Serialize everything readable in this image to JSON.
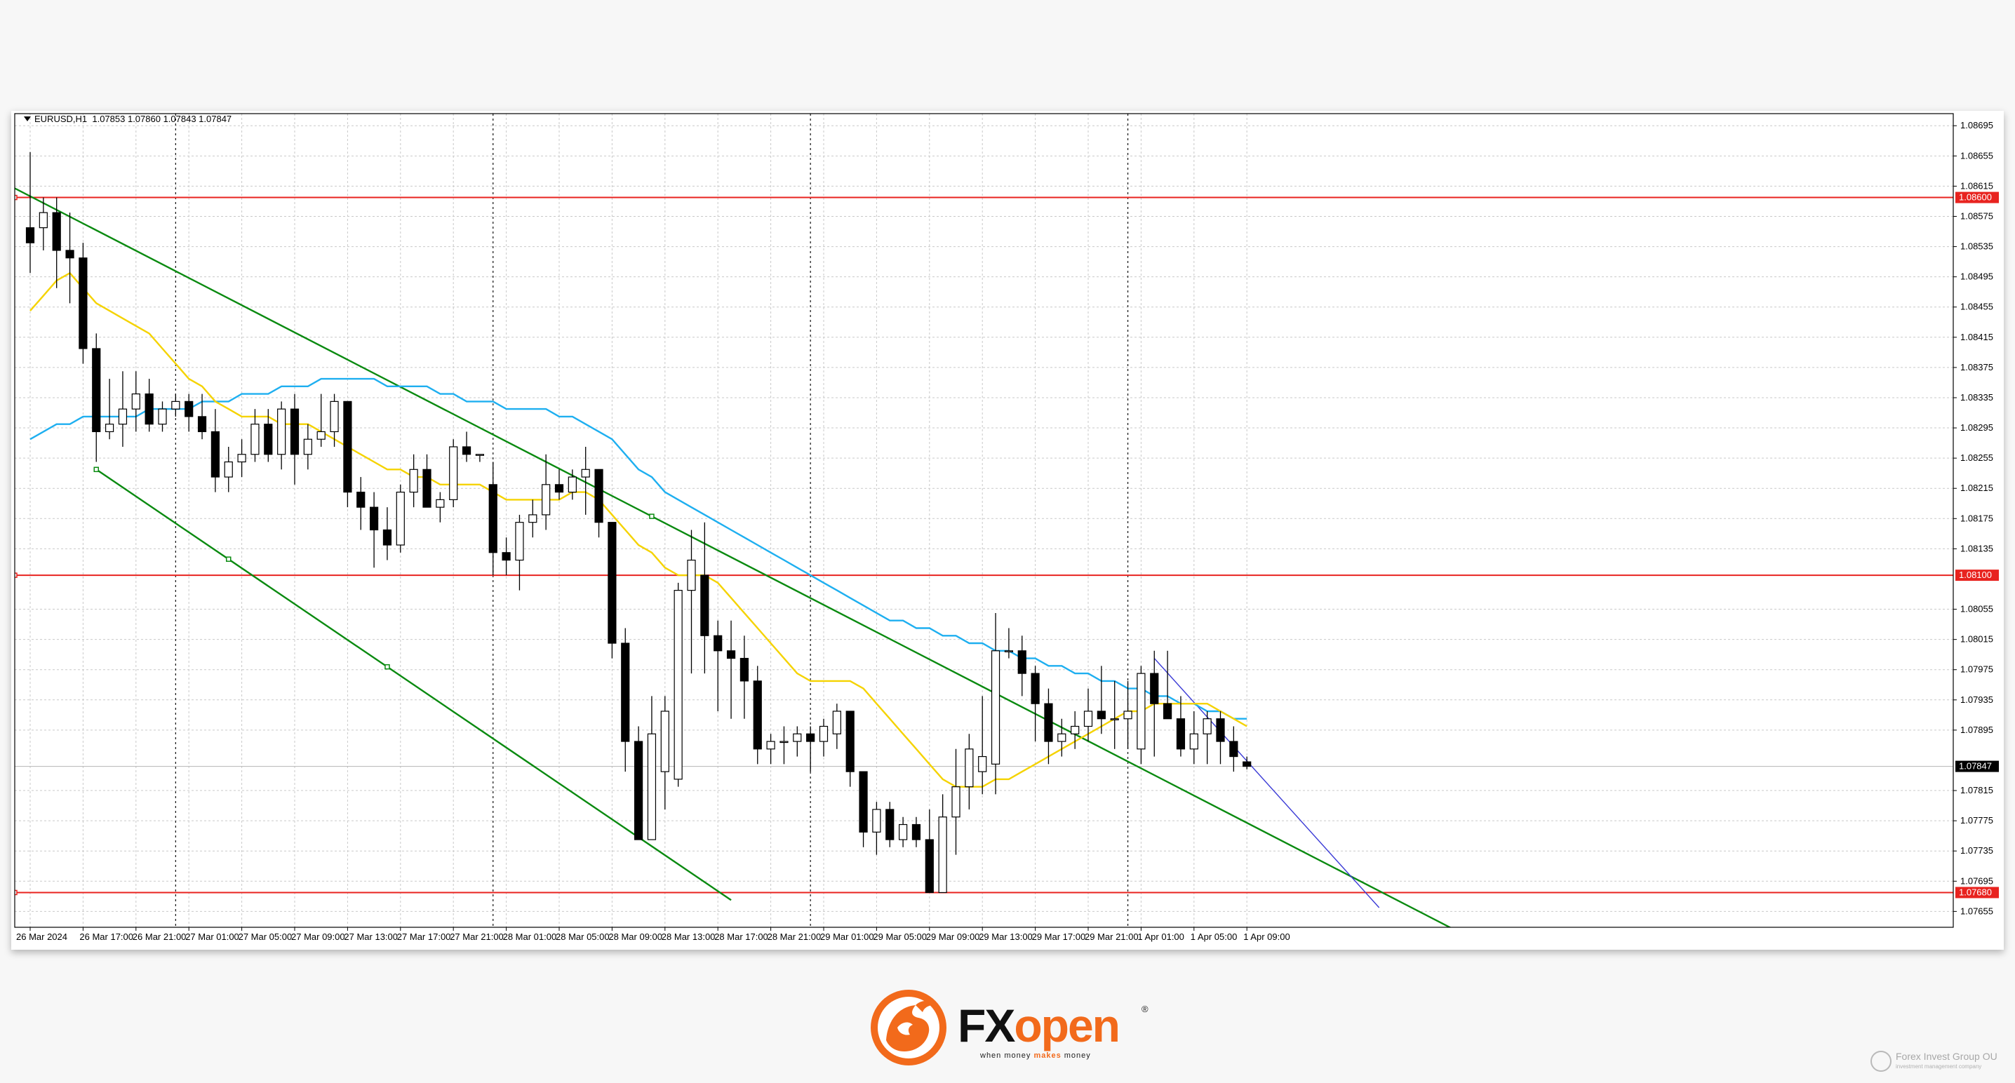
{
  "header": {
    "symbol": "EURUSD,H1",
    "ohlc": "1.07853 1.07860 1.07843 1.07847"
  },
  "chart_data": {
    "type": "candlestick",
    "timeframe": "H1",
    "ylim": [
      1.07634,
      1.08711
    ],
    "y_ticks": [
      "1.08695",
      "1.08655",
      "1.08615",
      "1.08575",
      "1.08535",
      "1.08495",
      "1.08455",
      "1.08415",
      "1.08375",
      "1.08335",
      "1.08295",
      "1.08255",
      "1.08215",
      "1.08175",
      "1.08135",
      "1.08055",
      "1.08015",
      "1.07975",
      "1.07935",
      "1.07895",
      "1.07815",
      "1.07775",
      "1.07735",
      "1.07695",
      "1.07655"
    ],
    "x_ticks": [
      "26 Mar 2024",
      "26 Mar 17:00",
      "26 Mar 21:00",
      "27 Mar 01:00",
      "27 Mar 05:00",
      "27 Mar 09:00",
      "27 Mar 13:00",
      "27 Mar 17:00",
      "27 Mar 21:00",
      "28 Mar 01:00",
      "28 Mar 05:00",
      "28 Mar 09:00",
      "28 Mar 13:00",
      "28 Mar 17:00",
      "28 Mar 21:00",
      "29 Mar 01:00",
      "29 Mar 05:00",
      "29 Mar 09:00",
      "29 Mar 13:00",
      "29 Mar 17:00",
      "29 Mar 21:00",
      "1 Apr 01:00",
      "1 Apr 05:00",
      "1 Apr 09:00"
    ],
    "x_tick_index": [
      0,
      4,
      8,
      12,
      16,
      20,
      24,
      28,
      32,
      36,
      40,
      44,
      48,
      52,
      56,
      60,
      64,
      68,
      72,
      76,
      80,
      84,
      88,
      92
    ],
    "day_separator_index": [
      11,
      35,
      59,
      83
    ],
    "candles": [
      [
        1.0856,
        1.0866,
        1.085,
        1.0854
      ],
      [
        1.0856,
        1.086,
        1.0853,
        1.0858
      ],
      [
        1.0858,
        1.086,
        1.0848,
        1.0853
      ],
      [
        1.0853,
        1.0858,
        1.0846,
        1.0852
      ],
      [
        1.0852,
        1.0854,
        1.0838,
        1.084
      ],
      [
        1.084,
        1.0842,
        1.0825,
        1.0829
      ],
      [
        1.0829,
        1.0836,
        1.0828,
        1.083
      ],
      [
        1.083,
        1.0837,
        1.0827,
        1.0832
      ],
      [
        1.0832,
        1.0837,
        1.0829,
        1.0834
      ],
      [
        1.0834,
        1.0836,
        1.0829,
        1.083
      ],
      [
        1.083,
        1.0833,
        1.0829,
        1.0832
      ],
      [
        1.0832,
        1.0834,
        1.0831,
        1.0833
      ],
      [
        1.0833,
        1.0834,
        1.0829,
        1.0831
      ],
      [
        1.0831,
        1.0834,
        1.0828,
        1.0829
      ],
      [
        1.0829,
        1.0832,
        1.0821,
        1.0823
      ],
      [
        1.0823,
        1.0827,
        1.0821,
        1.0825
      ],
      [
        1.0825,
        1.0828,
        1.0823,
        1.0826
      ],
      [
        1.0826,
        1.0832,
        1.0825,
        1.083
      ],
      [
        1.083,
        1.0832,
        1.0825,
        1.0826
      ],
      [
        1.0826,
        1.0833,
        1.0824,
        1.0832
      ],
      [
        1.0832,
        1.0834,
        1.0822,
        1.0826
      ],
      [
        1.0826,
        1.083,
        1.0824,
        1.0828
      ],
      [
        1.0828,
        1.0834,
        1.0827,
        1.0829
      ],
      [
        1.0829,
        1.0834,
        1.0827,
        1.0833
      ],
      [
        1.0833,
        1.0833,
        1.0819,
        1.0821
      ],
      [
        1.0821,
        1.0823,
        1.0816,
        1.0819
      ],
      [
        1.0819,
        1.0821,
        1.0811,
        1.0816
      ],
      [
        1.0816,
        1.0819,
        1.0812,
        1.0814
      ],
      [
        1.0814,
        1.0822,
        1.0813,
        1.0821
      ],
      [
        1.0821,
        1.0826,
        1.0819,
        1.0824
      ],
      [
        1.0824,
        1.0826,
        1.0819,
        1.0819
      ],
      [
        1.0819,
        1.0821,
        1.0817,
        1.082
      ],
      [
        1.082,
        1.0828,
        1.0819,
        1.0827
      ],
      [
        1.0827,
        1.0829,
        1.0825,
        1.0826
      ],
      [
        1.0826,
        1.0826,
        1.0825,
        1.0826
      ],
      [
        1.0822,
        1.0825,
        1.081,
        1.0813
      ],
      [
        1.0813,
        1.0815,
        1.081,
        1.0812
      ],
      [
        1.0812,
        1.0818,
        1.0808,
        1.0817
      ],
      [
        1.0817,
        1.082,
        1.0815,
        1.0818
      ],
      [
        1.0818,
        1.0826,
        1.0816,
        1.0822
      ],
      [
        1.0822,
        1.0824,
        1.082,
        1.0821
      ],
      [
        1.0821,
        1.0824,
        1.082,
        1.0823
      ],
      [
        1.0823,
        1.0827,
        1.0818,
        1.0824
      ],
      [
        1.0824,
        1.0824,
        1.0815,
        1.0817
      ],
      [
        1.0817,
        1.0817,
        1.0799,
        1.0801
      ],
      [
        1.0801,
        1.0803,
        1.0784,
        1.0788
      ],
      [
        1.0788,
        1.079,
        1.0775,
        1.0775
      ],
      [
        1.0775,
        1.0794,
        1.0775,
        1.0789
      ],
      [
        1.0784,
        1.0794,
        1.0779,
        1.0792
      ],
      [
        1.0783,
        1.0809,
        1.0782,
        1.0808
      ],
      [
        1.0808,
        1.0816,
        1.0797,
        1.0812
      ],
      [
        1.081,
        1.0817,
        1.0797,
        1.0802
      ],
      [
        1.0802,
        1.0804,
        1.0792,
        1.08
      ],
      [
        1.08,
        1.0804,
        1.0791,
        1.0799
      ],
      [
        1.0799,
        1.0802,
        1.0791,
        1.0796
      ],
      [
        1.0796,
        1.0798,
        1.0785,
        1.0787
      ],
      [
        1.0787,
        1.0789,
        1.0785,
        1.0788
      ],
      [
        1.0788,
        1.079,
        1.0785,
        1.0788
      ],
      [
        1.0788,
        1.079,
        1.0786,
        1.0789
      ],
      [
        1.0789,
        1.079,
        1.0784,
        1.0788
      ],
      [
        1.0788,
        1.0791,
        1.0786,
        1.079
      ],
      [
        1.0789,
        1.0793,
        1.0787,
        1.0792
      ],
      [
        1.0792,
        1.0792,
        1.0782,
        1.0784
      ],
      [
        1.0784,
        1.0784,
        1.0774,
        1.0776
      ],
      [
        1.0776,
        1.078,
        1.0773,
        1.0779
      ],
      [
        1.0779,
        1.078,
        1.0774,
        1.0775
      ],
      [
        1.0775,
        1.0778,
        1.0774,
        1.0777
      ],
      [
        1.0777,
        1.0778,
        1.0774,
        1.0775
      ],
      [
        1.0775,
        1.0779,
        1.0768,
        1.0768
      ],
      [
        1.0768,
        1.0781,
        1.0768,
        1.0778
      ],
      [
        1.0778,
        1.0787,
        1.0773,
        1.0782
      ],
      [
        1.0782,
        1.0789,
        1.0779,
        1.0787
      ],
      [
        1.0784,
        1.0794,
        1.0781,
        1.0786
      ],
      [
        1.0785,
        1.0805,
        1.0781,
        1.08
      ],
      [
        1.08,
        1.0803,
        1.0799,
        1.08
      ],
      [
        1.08,
        1.0802,
        1.0794,
        1.0797
      ],
      [
        1.0797,
        1.0798,
        1.0788,
        1.0793
      ],
      [
        1.0793,
        1.0795,
        1.0785,
        1.0788
      ],
      [
        1.0788,
        1.0791,
        1.0786,
        1.0789
      ],
      [
        1.0789,
        1.0792,
        1.0787,
        1.079
      ],
      [
        1.079,
        1.0795,
        1.0788,
        1.0792
      ],
      [
        1.0792,
        1.0798,
        1.0789,
        1.0791
      ],
      [
        1.0791,
        1.0796,
        1.0787,
        1.0791
      ],
      [
        1.0791,
        1.0796,
        1.0787,
        1.0792
      ],
      [
        1.0787,
        1.0798,
        1.0785,
        1.0797
      ],
      [
        1.0797,
        1.08,
        1.0786,
        1.0793
      ],
      [
        1.0793,
        1.08,
        1.0791,
        1.0791
      ],
      [
        1.0791,
        1.0794,
        1.0786,
        1.0787
      ],
      [
        1.0787,
        1.0792,
        1.0785,
        1.0789
      ],
      [
        1.0789,
        1.0792,
        1.0785,
        1.0791
      ],
      [
        1.0791,
        1.0792,
        1.0785,
        1.0788
      ],
      [
        1.0788,
        1.079,
        1.0784,
        1.0786
      ],
      [
        1.07853,
        1.0786,
        1.07843,
        1.07847
      ]
    ],
    "ma_fast": [
      1.0845,
      1.0847,
      1.0849,
      1.085,
      1.0848,
      1.0846,
      1.0845,
      1.0844,
      1.0843,
      1.0842,
      1.084,
      1.0838,
      1.0836,
      1.0835,
      1.0833,
      1.0832,
      1.0831,
      1.0831,
      1.0831,
      1.083,
      1.083,
      1.083,
      1.0829,
      1.0828,
      1.0827,
      1.0826,
      1.0825,
      1.0824,
      1.0824,
      1.0823,
      1.0823,
      1.0822,
      1.0822,
      1.0822,
      1.0822,
      1.0821,
      1.082,
      1.082,
      1.082,
      1.082,
      1.082,
      1.0821,
      1.0821,
      1.082,
      1.0818,
      1.0816,
      1.0814,
      1.0813,
      1.0811,
      1.081,
      1.081,
      1.081,
      1.0809,
      1.0807,
      1.0805,
      1.0803,
      1.0801,
      1.0799,
      1.0797,
      1.0796,
      1.0796,
      1.0796,
      1.0796,
      1.0795,
      1.0793,
      1.0791,
      1.0789,
      1.0787,
      1.0785,
      1.0783,
      1.0782,
      1.0782,
      1.0782,
      1.0783,
      1.0783,
      1.0784,
      1.0785,
      1.0786,
      1.0787,
      1.0788,
      1.0789,
      1.079,
      1.0791,
      1.0792,
      1.0792,
      1.0793,
      1.0793,
      1.0793,
      1.0793,
      1.0793,
      1.0792,
      1.0791,
      1.079
    ],
    "ma_slow": [
      1.0828,
      1.0829,
      1.083,
      1.083,
      1.0831,
      1.0831,
      1.0831,
      1.0831,
      1.0831,
      1.0832,
      1.0832,
      1.0832,
      1.0832,
      1.0833,
      1.0833,
      1.0833,
      1.0834,
      1.0834,
      1.0834,
      1.0835,
      1.0835,
      1.0835,
      1.0836,
      1.0836,
      1.0836,
      1.0836,
      1.0836,
      1.0835,
      1.0835,
      1.0835,
      1.0835,
      1.0834,
      1.0834,
      1.0833,
      1.0833,
      1.0833,
      1.0832,
      1.0832,
      1.0832,
      1.0832,
      1.0831,
      1.0831,
      1.083,
      1.0829,
      1.0828,
      1.0826,
      1.0824,
      1.0823,
      1.0821,
      1.082,
      1.0819,
      1.0818,
      1.0817,
      1.0816,
      1.0815,
      1.0814,
      1.0813,
      1.0812,
      1.0811,
      1.081,
      1.0809,
      1.0808,
      1.0807,
      1.0806,
      1.0805,
      1.0804,
      1.0804,
      1.0803,
      1.0803,
      1.0802,
      1.0802,
      1.0801,
      1.0801,
      1.08,
      1.08,
      1.0799,
      1.0799,
      1.0798,
      1.0798,
      1.0797,
      1.0797,
      1.0796,
      1.0796,
      1.0795,
      1.0795,
      1.0794,
      1.0794,
      1.0793,
      1.0793,
      1.0792,
      1.0792,
      1.0791,
      1.0791
    ],
    "horizontal_levels": [
      {
        "price": 1.086,
        "label": "1.08600",
        "color": "#e8231f"
      },
      {
        "price": 1.081,
        "label": "1.08100",
        "color": "#e8231f"
      },
      {
        "price": 1.0768,
        "label": "1.07680",
        "color": "#e8231f"
      }
    ],
    "current_price": {
      "price": 1.07847,
      "label": "1.07847"
    },
    "channel_lines": [
      {
        "from": [
          -22,
          1.088
        ],
        "to": [
          110,
          1.0761
        ],
        "color": "#0a8a10"
      },
      {
        "from": [
          5,
          1.0824
        ],
        "to": [
          53,
          1.0767
        ],
        "color": "#0a8a10"
      }
    ],
    "trend_line": {
      "from": [
        85,
        1.0799
      ],
      "to": [
        102,
        1.0766
      ],
      "color": "#3b3bd6"
    },
    "colors": {
      "ma_fast": "#f5d300",
      "ma_slow": "#1eaff0",
      "bull": "#ffffff",
      "bear": "#000000",
      "grid": "#c9c9c9"
    }
  },
  "logo": {
    "fx": "FX",
    "open": "open",
    "reg": "®",
    "tag_a": "when money ",
    "tag_b": "makes",
    "tag_c": " money",
    "brand_color": "#f26a1b"
  },
  "watermark": {
    "line1": "Forex Invest Group OU",
    "line2": "investment management company"
  }
}
